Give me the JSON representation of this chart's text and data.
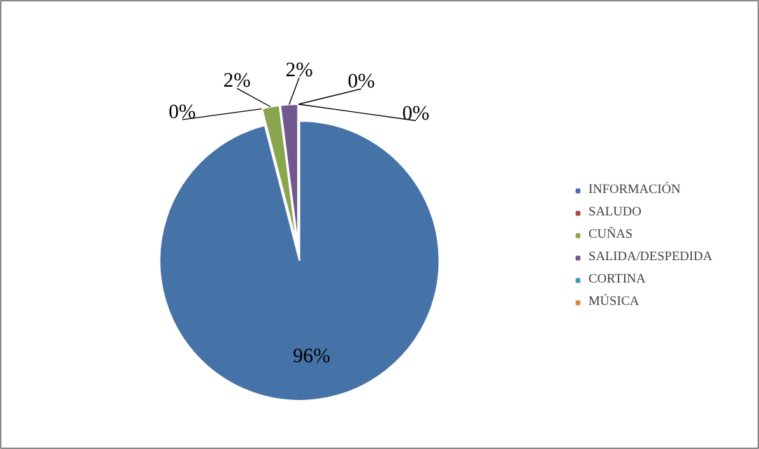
{
  "chart_data": {
    "type": "pie",
    "categories": [
      "INFORMACIÓN",
      "SALUDO",
      "CUÑAS",
      "SALIDA/DESPEDIDA",
      "CORTINA",
      "MÚSICA"
    ],
    "values": [
      96,
      0,
      2,
      2,
      0,
      0
    ],
    "colors": [
      "#4572a7",
      "#aa4643",
      "#89a54e",
      "#71588f",
      "#4198af",
      "#db843d"
    ],
    "value_labels": [
      "96%",
      "0%",
      "2%",
      "2%",
      "0%",
      "0%"
    ],
    "legend": "right"
  }
}
